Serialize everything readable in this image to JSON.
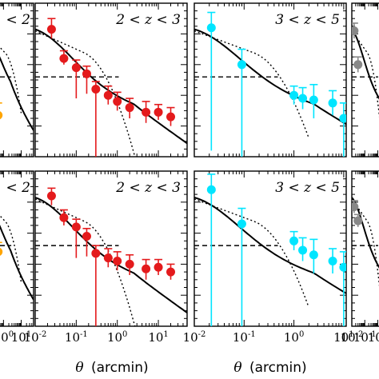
{
  "figure": {
    "xlabel_symbol": "θ",
    "xlabel_unit": "(arcmin)"
  },
  "chart_data": [
    {
      "type": "scatter",
      "panel": "top-left",
      "label": "< 2",
      "x_scale": "log",
      "series": [
        {
          "color": "#ffa500",
          "x": [
            0.2,
            0.5
          ],
          "y": [
            0.48,
            0.27
          ],
          "yerr_up": [
            0.06,
            0.08
          ],
          "yerr_down": [
            0.07,
            0.4
          ]
        }
      ],
      "model_total": {
        "x": [
          0.05,
          1.0
        ],
        "y": [
          0.6,
          0.12
        ]
      }
    },
    {
      "type": "scatter",
      "panel": "top-middle",
      "label": "2 < z < 3",
      "x_scale": "log",
      "xlim": [
        0.01,
        50
      ],
      "series": [
        {
          "color": "#e41a1c",
          "x": [
            0.025,
            0.05,
            0.1,
            0.18,
            0.3,
            0.6,
            1.0,
            2.0,
            5.0,
            10.0,
            20.0
          ],
          "y": [
            0.83,
            0.64,
            0.58,
            0.54,
            0.44,
            0.4,
            0.36,
            0.32,
            0.29,
            0.29,
            0.26
          ],
          "yerr_up": [
            0.07,
            0.05,
            0.05,
            0.05,
            0.05,
            0.06,
            0.06,
            0.06,
            0.07,
            0.05,
            0.06
          ],
          "yerr_down": [
            0.06,
            0.04,
            0.2,
            0.13,
            0.62,
            0.06,
            0.06,
            0.07,
            0.07,
            0.05,
            0.06
          ]
        }
      ]
    },
    {
      "type": "scatter",
      "panel": "top-right",
      "label": "3 < z < 5",
      "x_scale": "log",
      "xlim": [
        0.01,
        10
      ],
      "series": [
        {
          "color": "#00e5ff",
          "x": [
            0.022,
            0.09,
            1.0,
            1.5,
            2.5,
            6.0,
            10.0
          ],
          "y": [
            0.84,
            0.6,
            0.4,
            0.38,
            0.37,
            0.35,
            0.25
          ],
          "yerr_up": [
            0.1,
            0.1,
            0.06,
            0.07,
            0.1,
            0.08,
            0.1
          ],
          "yerr_down": [
            0.8,
            0.6,
            0.06,
            0.07,
            0.12,
            0.08,
            0.3
          ]
        }
      ]
    },
    {
      "type": "scatter",
      "panel": "top-far-right",
      "label": "",
      "x_scale": "log",
      "series": [
        {
          "color": "#888888",
          "x": [
            0.015,
            0.03
          ],
          "y": [
            0.82,
            0.6
          ],
          "yerr_up": [
            0.05,
            0.05
          ],
          "yerr_down": [
            0.05,
            0.05
          ]
        }
      ]
    },
    {
      "type": "scatter",
      "panel": "bottom-left",
      "label": "< 2",
      "x_scale": "log",
      "series": [
        {
          "color": "#ffa500",
          "x": [
            0.2,
            0.5
          ],
          "y": [
            0.55,
            0.48
          ],
          "yerr_up": [
            0.05,
            0.06
          ],
          "yerr_down": [
            0.06,
            0.45
          ]
        }
      ]
    },
    {
      "type": "scatter",
      "panel": "bottom-middle",
      "label": "2 < z < 3",
      "x_scale": "log",
      "xlim": [
        0.01,
        50
      ],
      "series": [
        {
          "color": "#e41a1c",
          "x": [
            0.025,
            0.05,
            0.1,
            0.18,
            0.3,
            0.6,
            1.0,
            2.0,
            5.0,
            10.0,
            20.0
          ],
          "y": [
            0.84,
            0.7,
            0.64,
            0.58,
            0.47,
            0.44,
            0.42,
            0.4,
            0.37,
            0.38,
            0.35
          ],
          "yerr_up": [
            0.05,
            0.05,
            0.05,
            0.05,
            0.05,
            0.06,
            0.06,
            0.06,
            0.06,
            0.05,
            0.05
          ],
          "yerr_down": [
            0.06,
            0.05,
            0.2,
            0.13,
            0.62,
            0.06,
            0.06,
            0.07,
            0.07,
            0.05,
            0.05
          ]
        }
      ]
    },
    {
      "type": "scatter",
      "panel": "bottom-right",
      "label": "3 < z < 5",
      "x_scale": "log",
      "xlim": [
        0.01,
        10
      ],
      "series": [
        {
          "color": "#00e5ff",
          "x": [
            0.022,
            0.09,
            1.0,
            1.5,
            2.5,
            6.0,
            10.0
          ],
          "y": [
            0.88,
            0.66,
            0.55,
            0.49,
            0.46,
            0.42,
            0.38
          ],
          "yerr_up": [
            0.1,
            0.1,
            0.06,
            0.08,
            0.1,
            0.08,
            0.1
          ],
          "yerr_down": [
            0.9,
            0.66,
            0.06,
            0.07,
            0.12,
            0.08,
            0.4
          ]
        }
      ]
    },
    {
      "type": "scatter",
      "panel": "bottom-far-right",
      "label": "",
      "x_scale": "log",
      "series": [
        {
          "color": "#888888",
          "x": [
            0.015,
            0.03
          ],
          "y": [
            0.77,
            0.68
          ],
          "yerr_up": [
            0.04,
            0.04
          ],
          "yerr_down": [
            0.04,
            0.04
          ]
        }
      ]
    }
  ]
}
